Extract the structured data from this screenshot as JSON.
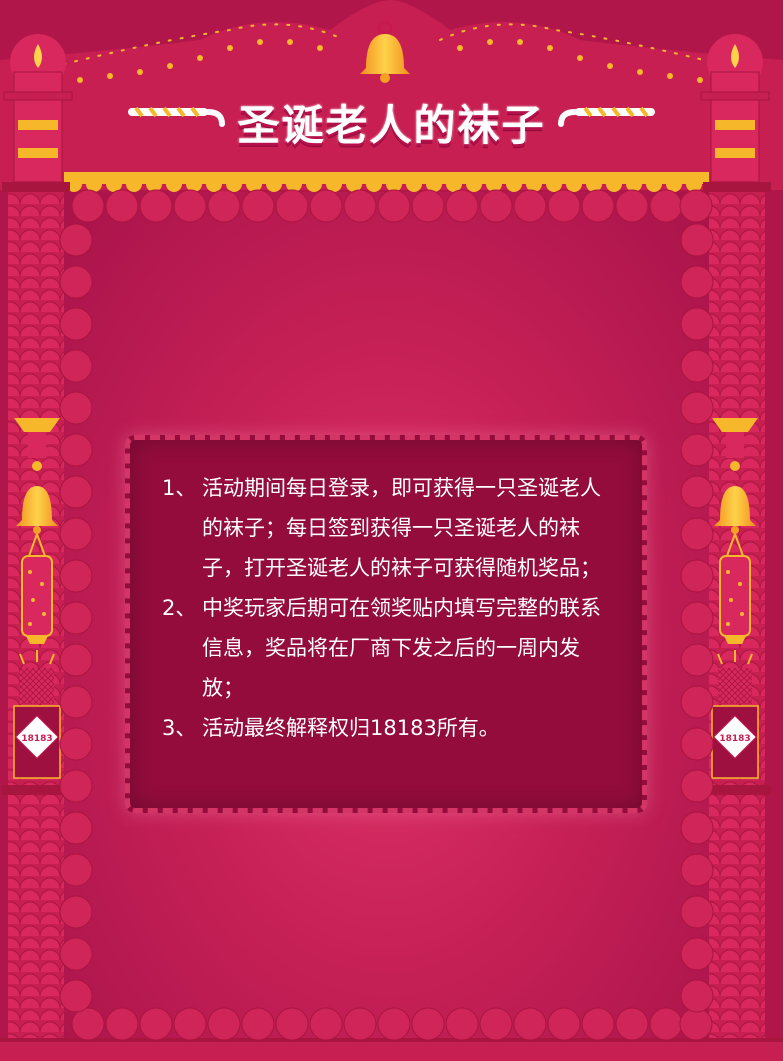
{
  "header": {
    "title": "圣诞老人的袜子"
  },
  "rules": [
    {
      "num": "1、",
      "text": "活动期间每日登录，即可获得一只圣诞老人的袜子；每日签到获得一只圣诞老人的袜子，打开圣诞老人的袜子可获得随机奖品；"
    },
    {
      "num": "2、",
      "text": "中奖玩家后期可在领奖贴内填写完整的联系信息，奖品将在厂商下发之后的一周内发放；"
    },
    {
      "num": "3、",
      "text": "活动最终解释权归18183所有。"
    }
  ],
  "decor": {
    "stamp_left": "18183",
    "stamp_right": "18183"
  },
  "colors": {
    "frame": "#c81f52",
    "frame_dark": "#a8153f",
    "gold": "#f7b72b",
    "panel": "#930c3c",
    "text": "#ffffff"
  }
}
